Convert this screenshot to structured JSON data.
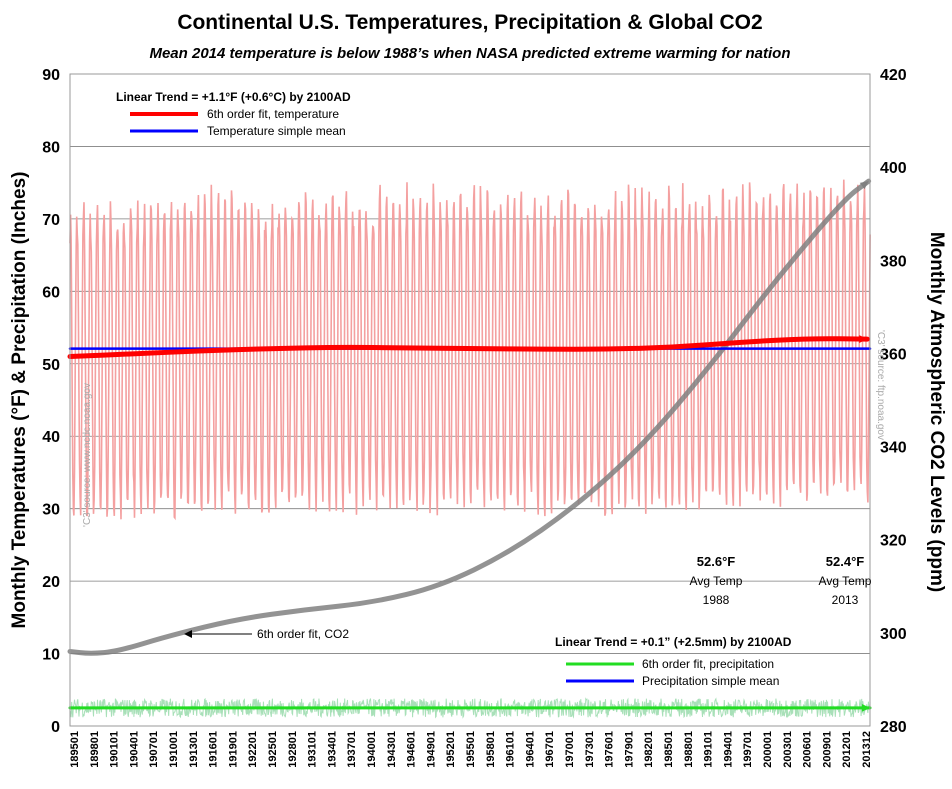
{
  "chart_data": {
    "type": "line",
    "title": "Continental U.S. Temperatures, Precipitation & Global CO2",
    "subtitle": "Mean 2014 temperature is below 1988’s when NASA predicted extreme warming for nation",
    "ylabel_left": "Monthly Temperatures (°F) & Precipitation (Inches)",
    "ylabel_right": "Monthly Atmospheric CO2 Levels (ppm)",
    "ylim_left": [
      0,
      90
    ],
    "ylim_right": [
      280,
      420
    ],
    "yticks_left": [
      0,
      10,
      20,
      30,
      40,
      50,
      60,
      70,
      80,
      90
    ],
    "yticks_right": [
      280,
      300,
      320,
      340,
      360,
      380,
      400,
      420
    ],
    "x_start": 1895,
    "x_end": 2013.9,
    "xtick_labels": [
      "189501",
      "189801",
      "190101",
      "190401",
      "190701",
      "191001",
      "191301",
      "191601",
      "191901",
      "192201",
      "192501",
      "192801",
      "193101",
      "193401",
      "193701",
      "194001",
      "194301",
      "194601",
      "194901",
      "195201",
      "195501",
      "195801",
      "196101",
      "196401",
      "196701",
      "197001",
      "197301",
      "197601",
      "197901",
      "198201",
      "198501",
      "198801",
      "199101",
      "199401",
      "199701",
      "200001",
      "200301",
      "200601",
      "200901",
      "201201",
      "201312"
    ],
    "grid": true,
    "colors": {
      "temperature": "#f4a0a0",
      "temp_fit": "#ff0000",
      "temp_mean": "#0000ff",
      "precip": "#a8e0b8",
      "precip_fit": "#22dd22",
      "precip_mean": "#0000ff",
      "co2_fit": "#808080"
    },
    "series": [
      {
        "name": "6th order fit, temperature",
        "axis": "left",
        "x": [
          1895,
          1905,
          1915,
          1925,
          1935,
          1945,
          1955,
          1965,
          1975,
          1985,
          1995,
          2005,
          2013.5
        ],
        "values": [
          51.0,
          51.4,
          51.8,
          52.1,
          52.3,
          52.2,
          52.1,
          52.0,
          52.0,
          52.3,
          53.0,
          53.5,
          53.4
        ]
      },
      {
        "name": "Temperature simple mean",
        "axis": "left",
        "x": [
          1895,
          2013.9
        ],
        "values": [
          52.1,
          52.1
        ]
      },
      {
        "name": "6th order fit, precipitation",
        "axis": "left",
        "x": [
          1895,
          2013.9
        ],
        "values": [
          2.5,
          2.5
        ]
      },
      {
        "name": "Precipitation simple mean",
        "axis": "left",
        "x": [
          1895,
          2013.9
        ],
        "values": [
          2.5,
          2.5
        ]
      },
      {
        "name": "6th order fit, CO2",
        "axis": "right",
        "x": [
          1895,
          1898,
          1902,
          1910,
          1920,
          1930,
          1940,
          1950,
          1960,
          1970,
          1980,
          1990,
          2000,
          2010,
          2013.7
        ],
        "values": [
          296,
          295.5,
          296,
          299.5,
          303,
          305,
          306.5,
          310,
          317,
          327,
          340,
          357,
          376,
          393,
          397
        ]
      }
    ],
    "legend_top": {
      "header": "Linear Trend = +1.1°F (+0.6°C) by 2100AD",
      "items": [
        "6th order fit, temperature",
        "Temperature simple mean"
      ]
    },
    "legend_bottom": {
      "header": "Linear Trend = +0.1” (+2.5mm) by 2100AD",
      "items": [
        "6th order fit, precipitation",
        "Precipitation simple mean"
      ]
    },
    "annotations": {
      "co2_label": "6th order fit, CO2",
      "t1988_value": "52.6°F",
      "t1988_line1": "Avg Temp",
      "t1988_line2": "1988",
      "t2013_value": "52.4°F",
      "t2013_line1": "Avg Temp",
      "t2013_line2": "2013"
    },
    "sources": {
      "left": "'C3' source: www.ncdc.noaa.gov",
      "right": "'C3' source: ftp.noaa.gov"
    }
  }
}
